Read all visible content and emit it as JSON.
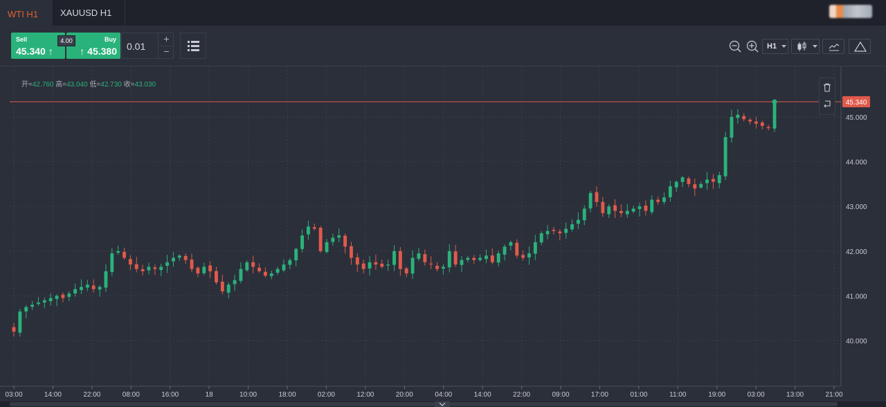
{
  "tabs": [
    {
      "label": "WTI H1",
      "active": true
    },
    {
      "label": "XAUUSD H1",
      "active": false
    }
  ],
  "trade": {
    "sell_label": "Sell",
    "sell_price": "45.340",
    "sell_arrow": "↑",
    "buy_label": "Buy",
    "buy_price": "45.380",
    "buy_arrow": "↑",
    "spread": "4.00",
    "quantity": "0.01",
    "plus": "+",
    "minus": "−"
  },
  "toolbar": {
    "timeframe": "H1"
  },
  "ohlc": {
    "open_label": "开=",
    "open": "42.760",
    "high_label": "高=",
    "high": "43.040",
    "low_label": "低=",
    "low": "42.730",
    "close_label": "收=",
    "close": "43.030"
  },
  "colors": {
    "up": "#2ab27b",
    "down": "#e05a4b",
    "price_line": "#e05a4b",
    "tab_active": "#e0622d"
  },
  "chart_data": {
    "type": "candlestick",
    "current_price": "45.340",
    "y_ticks": [
      "45.000",
      "44.000",
      "43.000",
      "42.000",
      "41.000",
      "40.000"
    ],
    "y_tick_values": [
      45,
      44,
      43,
      42,
      41,
      40
    ],
    "x_tick_labels": [
      "03:00",
      "14:00",
      "22:00",
      "08:00",
      "16:00",
      "18",
      "10:00",
      "18:00",
      "02:00",
      "12:00",
      "20:00",
      "04:00",
      "14:00",
      "22:00",
      "09:00",
      "17:00",
      "01:00",
      "11:00",
      "19:00",
      "03:00",
      "13:00",
      "21:00"
    ],
    "ylim": [
      39.2,
      45.8
    ],
    "closes": [
      40.2,
      40.65,
      40.75,
      40.8,
      40.85,
      40.9,
      40.95,
      41.0,
      40.95,
      41.05,
      41.15,
      41.2,
      41.25,
      41.15,
      41.2,
      41.55,
      41.95,
      42.0,
      41.85,
      41.7,
      41.6,
      41.55,
      41.65,
      41.6,
      41.65,
      41.75,
      41.85,
      41.9,
      41.8,
      41.6,
      41.5,
      41.65,
      41.55,
      41.3,
      41.1,
      41.25,
      41.35,
      41.6,
      41.75,
      41.65,
      41.55,
      41.45,
      41.5,
      41.6,
      41.7,
      41.8,
      42.05,
      42.35,
      42.55,
      42.5,
      42.0,
      42.2,
      42.3,
      42.35,
      42.1,
      41.85,
      41.7,
      41.6,
      41.75,
      41.7,
      41.65,
      41.7,
      42.0,
      41.6,
      41.5,
      41.85,
      41.95,
      41.75,
      41.7,
      41.6,
      41.65,
      42.0,
      41.7,
      41.8,
      41.85,
      41.8,
      41.85,
      41.9,
      41.75,
      41.95,
      42.1,
      42.2,
      41.9,
      41.85,
      41.95,
      42.2,
      42.4,
      42.45,
      42.45,
      42.4,
      42.5,
      42.6,
      42.7,
      42.95,
      43.3,
      43.1,
      42.85,
      43.0,
      42.9,
      42.85,
      42.9,
      42.95,
      43.0,
      42.9,
      43.15,
      43.1,
      43.2,
      43.45,
      43.55,
      43.65,
      43.5,
      43.4,
      43.5,
      43.6,
      43.55,
      43.7,
      44.55,
      45.0,
      45.05,
      44.95,
      44.9,
      44.85,
      44.8,
      44.75,
      45.34
    ]
  }
}
